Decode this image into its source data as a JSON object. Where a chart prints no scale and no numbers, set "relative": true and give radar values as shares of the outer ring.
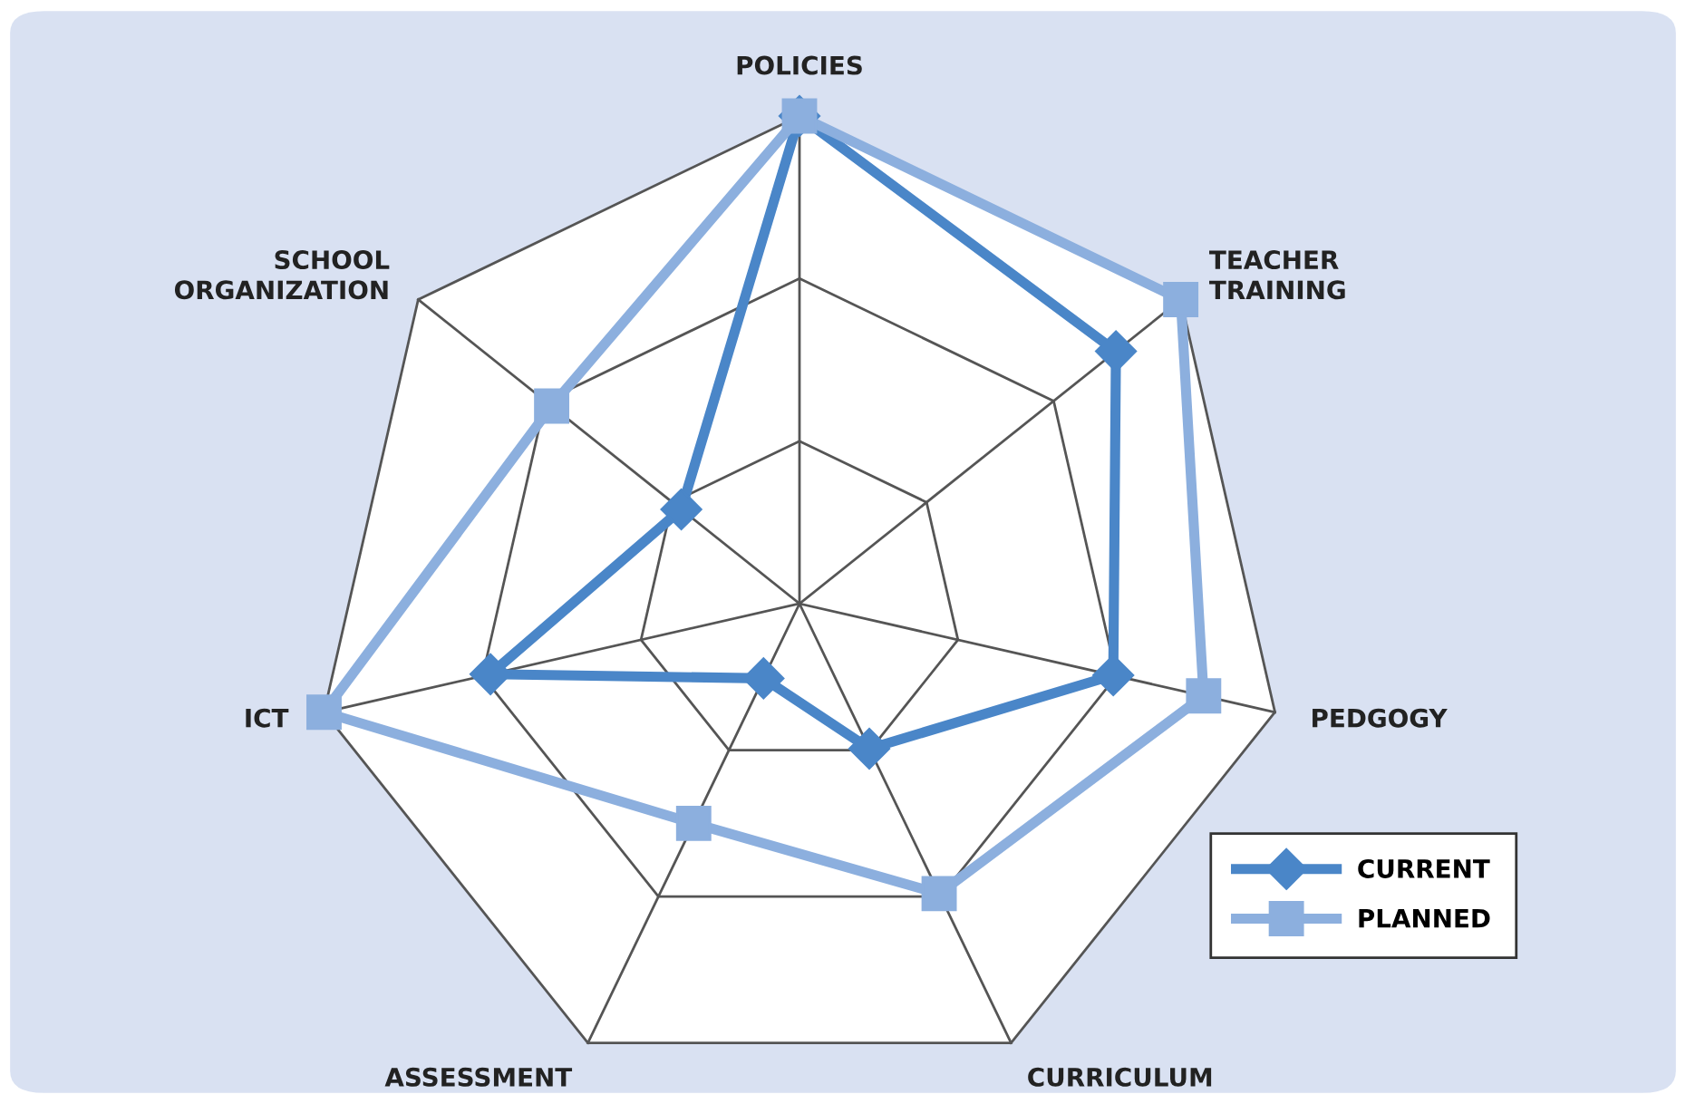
{
  "chart_data": {
    "type": "radar",
    "relative": true,
    "categories": [
      "POLICIES",
      "TEACHER\nTRAINING",
      "PEDGOGY",
      "CURRICULUM",
      "ASSESSMENT",
      "ICT",
      "SCHOOL\nORGANIZATION"
    ],
    "series": [
      {
        "name": "CURRENT",
        "color": "#4a86c8",
        "marker": "diamond",
        "values": [
          1,
          0.83,
          0.66,
          0.33,
          0.17,
          0.65,
          0.31
        ]
      },
      {
        "name": "PLANNED",
        "color": "#8cafde",
        "marker": "square",
        "values": [
          1,
          1,
          0.85,
          0.66,
          0.5,
          1,
          0.65
        ]
      }
    ],
    "legend": "bottom right"
  }
}
